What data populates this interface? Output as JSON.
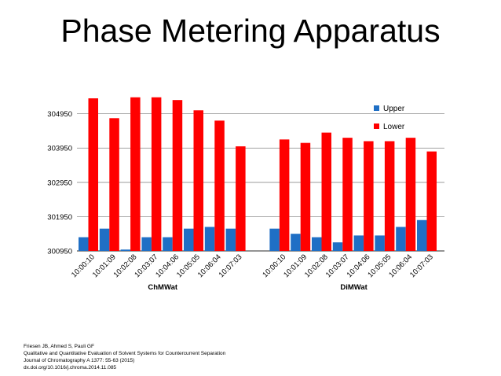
{
  "slide": {
    "title": "Phase Metering Apparatus",
    "citation": [
      "Friesen JB, Ahmed S, Pauli GF",
      "Qualitative and Quantitative Evaluation of Solvent Systems for Countercurrent Separation",
      "Journal of Chromatography A 1377: 55-63 (2015)",
      "dx.doi.org/10.1016/j.chroma.2014.11.085"
    ]
  },
  "colors": {
    "upper": "#1f6fc5",
    "lower": "#ff0000",
    "grid": "#8c8c8c"
  },
  "chart_data": {
    "type": "bar",
    "title": "",
    "xlabel": "",
    "ylabel": "",
    "ylim": [
      300950,
      305400
    ],
    "yticks": [
      300950,
      301950,
      302950,
      303950,
      304950
    ],
    "grid": true,
    "legend_position": "top-right",
    "groups": [
      {
        "name": "ChMWat",
        "categories": [
          "10:00:10",
          "10:01:09",
          "10:02:08",
          "10:03:07",
          "10:04:06",
          "10:05:05",
          "10:06:04",
          "10:07:03"
        ],
        "series": [
          {
            "name": "Upper",
            "values": [
              301350,
              301600,
              300990,
              301350,
              301350,
              301600,
              301650,
              301600
            ]
          },
          {
            "name": "Lower",
            "values": [
              305400,
              304820,
              305430,
              305430,
              305350,
              305050,
              304750,
              304000
            ]
          }
        ]
      },
      {
        "name": "DiMWat",
        "categories": [
          "10:00:10",
          "10:01:09",
          "10:02:08",
          "10:03:07",
          "10:04:06",
          "10:05:05",
          "10:06:04",
          "10:07:03"
        ],
        "series": [
          {
            "name": "Upper",
            "values": [
              301600,
              301450,
              301350,
              301200,
              301400,
              301400,
              301650,
              301850
            ]
          },
          {
            "name": "Lower",
            "values": [
              304200,
              304100,
              304400,
              304250,
              304150,
              304150,
              304250,
              303850
            ]
          }
        ]
      }
    ],
    "legend": [
      "Upper",
      "Lower"
    ]
  }
}
